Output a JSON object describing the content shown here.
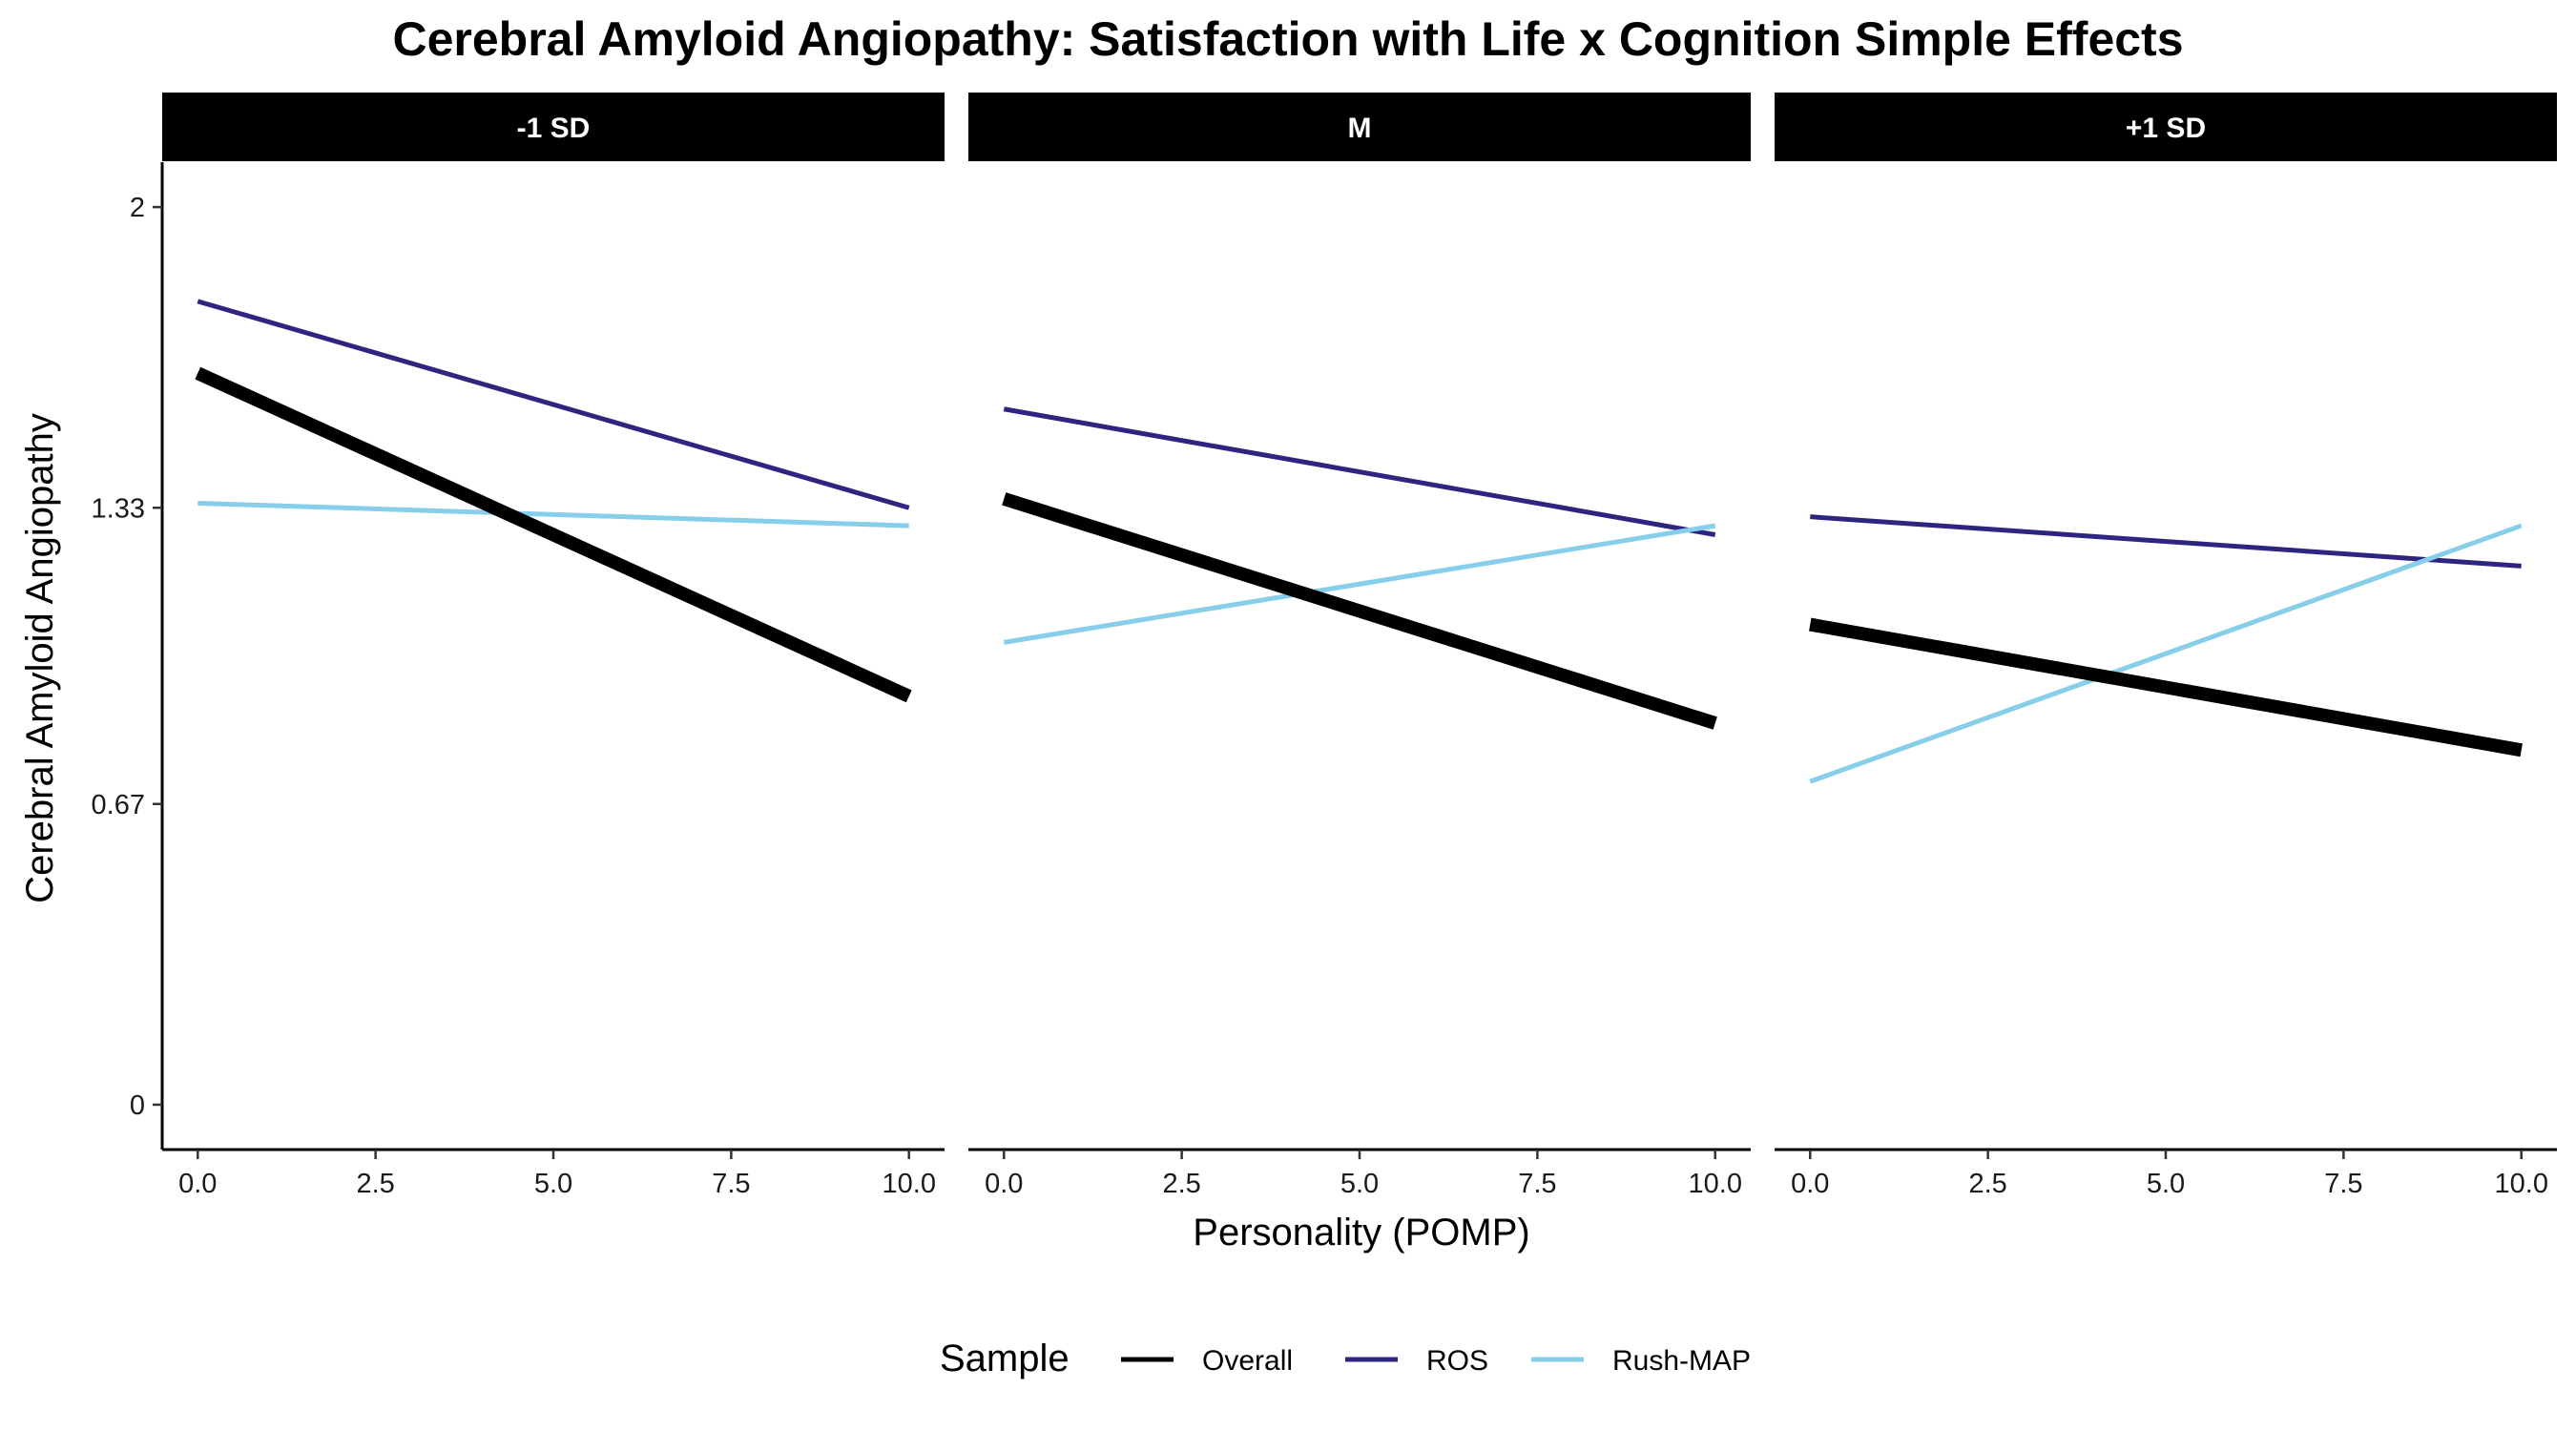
{
  "chart_data": {
    "type": "line",
    "title": "Cerebral Amyloid Angiopathy: Satisfaction with Life x Cognition Simple Effects",
    "xlabel": "Personality (POMP)",
    "ylabel": "Cerebral Amyloid Angiopathy",
    "xlim": [
      -0.5,
      10.5
    ],
    "ylim": [
      -0.1,
      2.1
    ],
    "x_ticks": [
      0,
      2.5,
      5,
      7.5,
      10
    ],
    "x_tick_labels": [
      "0.0",
      "2.5",
      "5.0",
      "7.5",
      "10.0"
    ],
    "y_ticks": [
      0,
      0.67,
      1.33,
      2
    ],
    "y_tick_labels": [
      "0",
      "0.67",
      "1.33",
      "2"
    ],
    "grid": false,
    "legend": {
      "title": "Sample",
      "position": "bottom",
      "entries": [
        "Overall",
        "ROS",
        "Rush-MAP"
      ]
    },
    "colors": {
      "Overall": "#000000",
      "ROS": "#2e2580",
      "Rush-MAP": "#87ceeb"
    },
    "panels": [
      {
        "label": "-1 SD",
        "series": [
          {
            "name": "Overall",
            "x": [
              0,
              10
            ],
            "y": [
              1.63,
              0.91
            ]
          },
          {
            "name": "ROS",
            "x": [
              0,
              10
            ],
            "y": [
              1.79,
              1.33
            ]
          },
          {
            "name": "Rush-MAP",
            "x": [
              0,
              10
            ],
            "y": [
              1.34,
              1.29
            ]
          }
        ]
      },
      {
        "label": "M",
        "series": [
          {
            "name": "Overall",
            "x": [
              0,
              10
            ],
            "y": [
              1.35,
              0.85
            ]
          },
          {
            "name": "ROS",
            "x": [
              0,
              10
            ],
            "y": [
              1.55,
              1.27
            ]
          },
          {
            "name": "Rush-MAP",
            "x": [
              0,
              10
            ],
            "y": [
              1.03,
              1.29
            ]
          }
        ]
      },
      {
        "label": "+1 SD",
        "series": [
          {
            "name": "Overall",
            "x": [
              0,
              10
            ],
            "y": [
              1.07,
              0.79
            ]
          },
          {
            "name": "ROS",
            "x": [
              0,
              10
            ],
            "y": [
              1.31,
              1.2
            ]
          },
          {
            "name": "Rush-MAP",
            "x": [
              0,
              10
            ],
            "y": [
              0.72,
              1.29
            ]
          }
        ]
      }
    ]
  }
}
